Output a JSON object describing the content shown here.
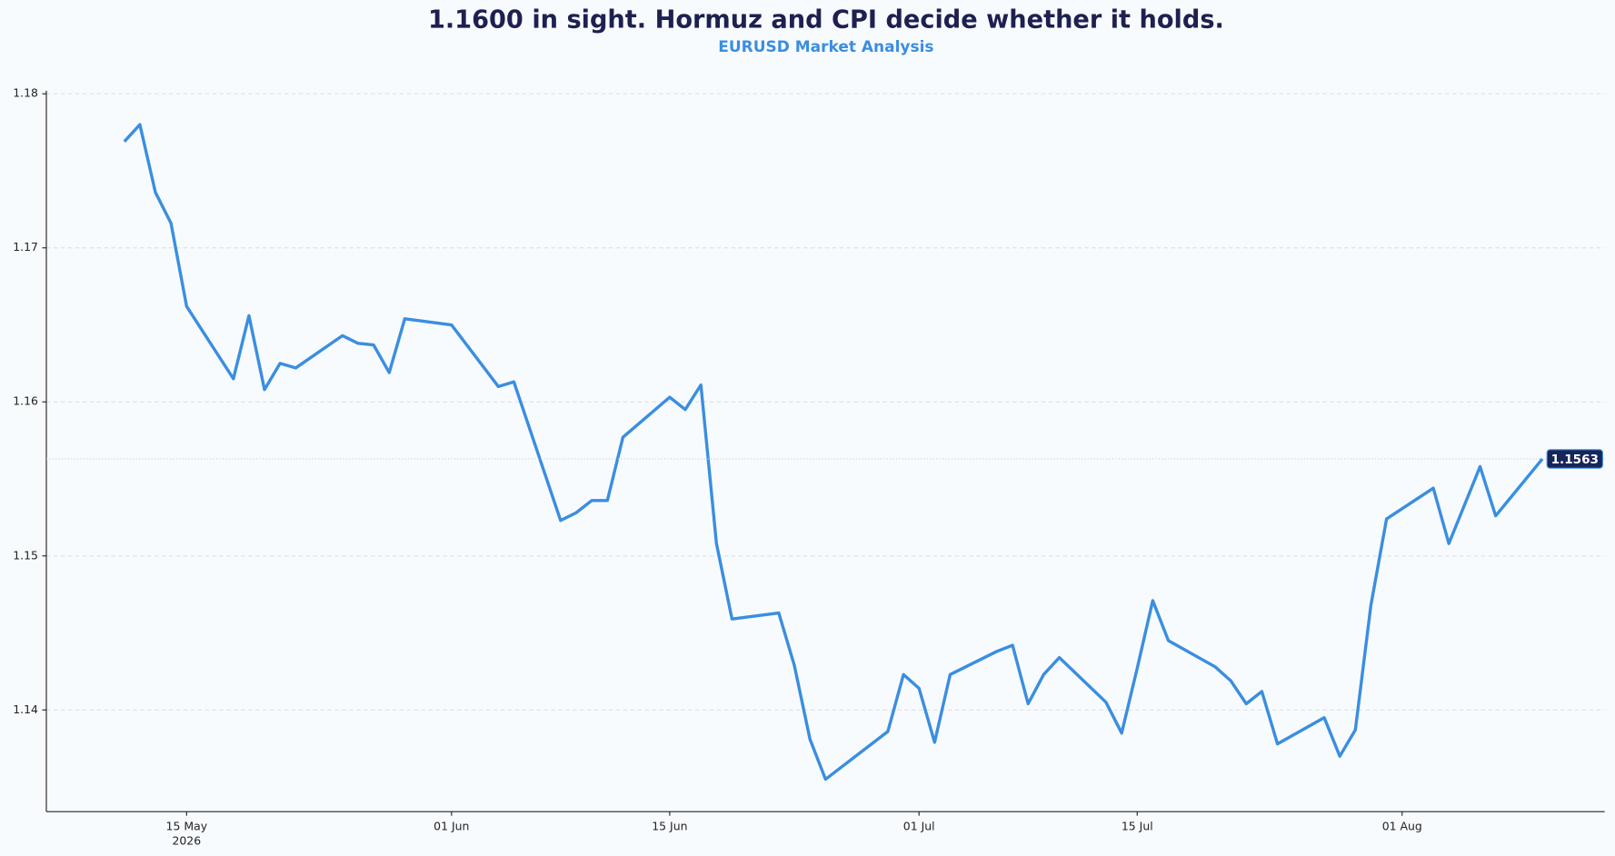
{
  "chart_data": {
    "type": "line",
    "title": "1.1600 in sight. Hormuz and CPI decide whether it holds.",
    "subtitle": "EURUSD Market Analysis",
    "x": [
      "2026-05-11",
      "2026-05-12",
      "2026-05-13",
      "2026-05-14",
      "2026-05-15",
      "2026-05-18",
      "2026-05-19",
      "2026-05-20",
      "2026-05-21",
      "2026-05-22",
      "2026-05-25",
      "2026-05-26",
      "2026-05-27",
      "2026-05-28",
      "2026-05-29",
      "2026-06-01",
      "2026-06-04",
      "2026-06-05",
      "2026-06-08",
      "2026-06-09",
      "2026-06-10",
      "2026-06-11",
      "2026-06-12",
      "2026-06-15",
      "2026-06-16",
      "2026-06-17",
      "2026-06-18",
      "2026-06-19",
      "2026-06-22",
      "2026-06-23",
      "2026-06-24",
      "2026-06-25",
      "2026-06-29",
      "2026-06-30",
      "2026-07-01",
      "2026-07-02",
      "2026-07-03",
      "2026-07-06",
      "2026-07-07",
      "2026-07-08",
      "2026-07-09",
      "2026-07-10",
      "2026-07-13",
      "2026-07-14",
      "2026-07-15",
      "2026-07-16",
      "2026-07-17",
      "2026-07-20",
      "2026-07-21",
      "2026-07-22",
      "2026-07-23",
      "2026-07-24",
      "2026-07-27",
      "2026-07-28",
      "2026-07-29",
      "2026-07-30",
      "2026-07-31",
      "2026-08-03",
      "2026-08-04",
      "2026-08-06",
      "2026-08-07",
      "2026-08-10"
    ],
    "values": [
      1.1769,
      1.178,
      1.1736,
      1.1716,
      1.1662,
      1.1615,
      1.1656,
      1.1608,
      1.1625,
      1.1622,
      1.1643,
      1.1638,
      1.1637,
      1.1619,
      1.1654,
      1.165,
      1.161,
      1.1613,
      1.1523,
      1.1528,
      1.1536,
      1.1536,
      1.1577,
      1.1603,
      1.1595,
      1.1611,
      1.1508,
      1.1459,
      1.1463,
      1.1429,
      1.1381,
      1.1355,
      1.1386,
      1.1423,
      1.1414,
      1.1379,
      1.1423,
      1.1438,
      1.1442,
      1.1404,
      1.1423,
      1.1434,
      1.1405,
      1.1385,
      1.1427,
      1.1471,
      1.1445,
      1.1428,
      1.1419,
      1.1404,
      1.1412,
      1.1378,
      1.1395,
      1.137,
      1.1387,
      1.1468,
      1.1524,
      1.1544,
      1.1508,
      1.1558,
      1.1526,
      1.1563
    ],
    "color": "#3a8ee0",
    "last_value_label": "1.1563",
    "xlim": [
      "2026-05-06",
      "2026-08-14"
    ],
    "xticks": [
      {
        "value": "2026-05-15",
        "label": "15 May"
      },
      {
        "value": "2026-06-01",
        "label": "01 Jun"
      },
      {
        "value": "2026-06-15",
        "label": "15 Jun"
      },
      {
        "value": "2026-07-01",
        "label": "01 Jul"
      },
      {
        "value": "2026-07-15",
        "label": "15 Jul"
      },
      {
        "value": "2026-08-01",
        "label": "01 Aug"
      }
    ],
    "x_offset_label": "2026",
    "ylim": [
      1.1334,
      1.1802
    ],
    "yticks": [
      1.14,
      1.15,
      1.16,
      1.17,
      1.18
    ],
    "grid": true
  }
}
